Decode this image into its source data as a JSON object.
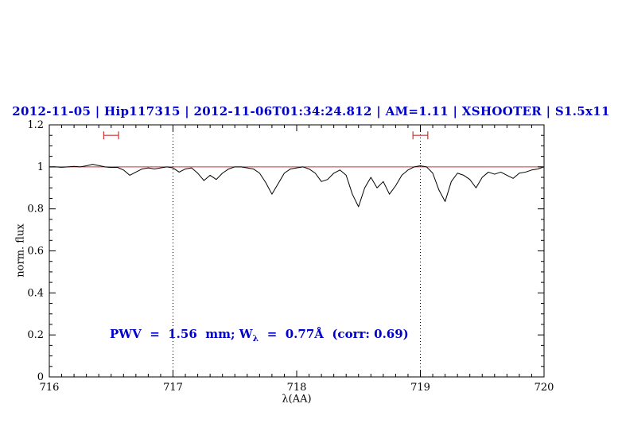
{
  "title": "2012-11-05 | Hip117315 | 2012-11-06T01:34:24.812 | AM=1.11 | XSHOOTER | S1.5x11",
  "annotation": {
    "prefix": "PWV  =  1.56  mm; W",
    "subscript": "λ",
    "suffix": "  =  0.77Å  (corr: 0.69)"
  },
  "colors": {
    "title": "#0000cc",
    "annotation": "#0000cc",
    "spectrum": "#000000",
    "reference_line": "#cc3333",
    "marker": "#cc3333",
    "axis": "#000000"
  },
  "chart_data": {
    "type": "line",
    "title": "2012-11-05 | Hip117315 | 2012-11-06T01:34:24.812 | AM=1.11 | XSHOOTER | S1.5x11",
    "xlabel": "λ(AA)",
    "ylabel": "norm. flux",
    "xlim": [
      716,
      720
    ],
    "ylim": [
      0,
      1.2
    ],
    "x_ticks": [
      716,
      717,
      718,
      719,
      720
    ],
    "x_tick_labels": [
      "716",
      "717",
      "718",
      "719",
      "720"
    ],
    "y_ticks": [
      0,
      0.2,
      0.4,
      0.6,
      0.8,
      1,
      1.2
    ],
    "y_tick_labels": [
      "0",
      "0.2",
      "0.4",
      "0.6",
      "0.8",
      "1",
      "1.2"
    ],
    "x_minor_step": 0.1,
    "y_minor_step": 0.05,
    "grid": "off",
    "grid_vlines_dotted": [
      717,
      719
    ],
    "reference_line_y": 1.0,
    "markers": [
      {
        "x_center": 716.5,
        "half_width": 0.06,
        "y": 1.15
      },
      {
        "x_center": 719.0,
        "half_width": 0.06,
        "y": 1.15
      }
    ],
    "series": [
      {
        "name": "normalized-spectrum",
        "x_start": 716.0,
        "x_step": 0.05,
        "flux": [
          1.0,
          1.0,
          0.998,
          1.0,
          1.002,
          1.0,
          1.005,
          1.012,
          1.006,
          1.0,
          0.997,
          0.998,
          0.985,
          0.96,
          0.975,
          0.99,
          0.995,
          0.99,
          0.995,
          1.0,
          0.995,
          0.975,
          0.99,
          0.995,
          0.97,
          0.935,
          0.96,
          0.94,
          0.97,
          0.99,
          1.0,
          1.0,
          0.995,
          0.99,
          0.97,
          0.925,
          0.87,
          0.92,
          0.97,
          0.99,
          0.995,
          1.0,
          0.99,
          0.97,
          0.93,
          0.94,
          0.97,
          0.985,
          0.96,
          0.87,
          0.81,
          0.9,
          0.95,
          0.9,
          0.93,
          0.87,
          0.91,
          0.96,
          0.985,
          1.0,
          1.005,
          1.0,
          0.97,
          0.89,
          0.835,
          0.93,
          0.97,
          0.96,
          0.94,
          0.9,
          0.95,
          0.975,
          0.965,
          0.975,
          0.96,
          0.945,
          0.97,
          0.975,
          0.985,
          0.99,
          1.0
        ]
      }
    ]
  }
}
